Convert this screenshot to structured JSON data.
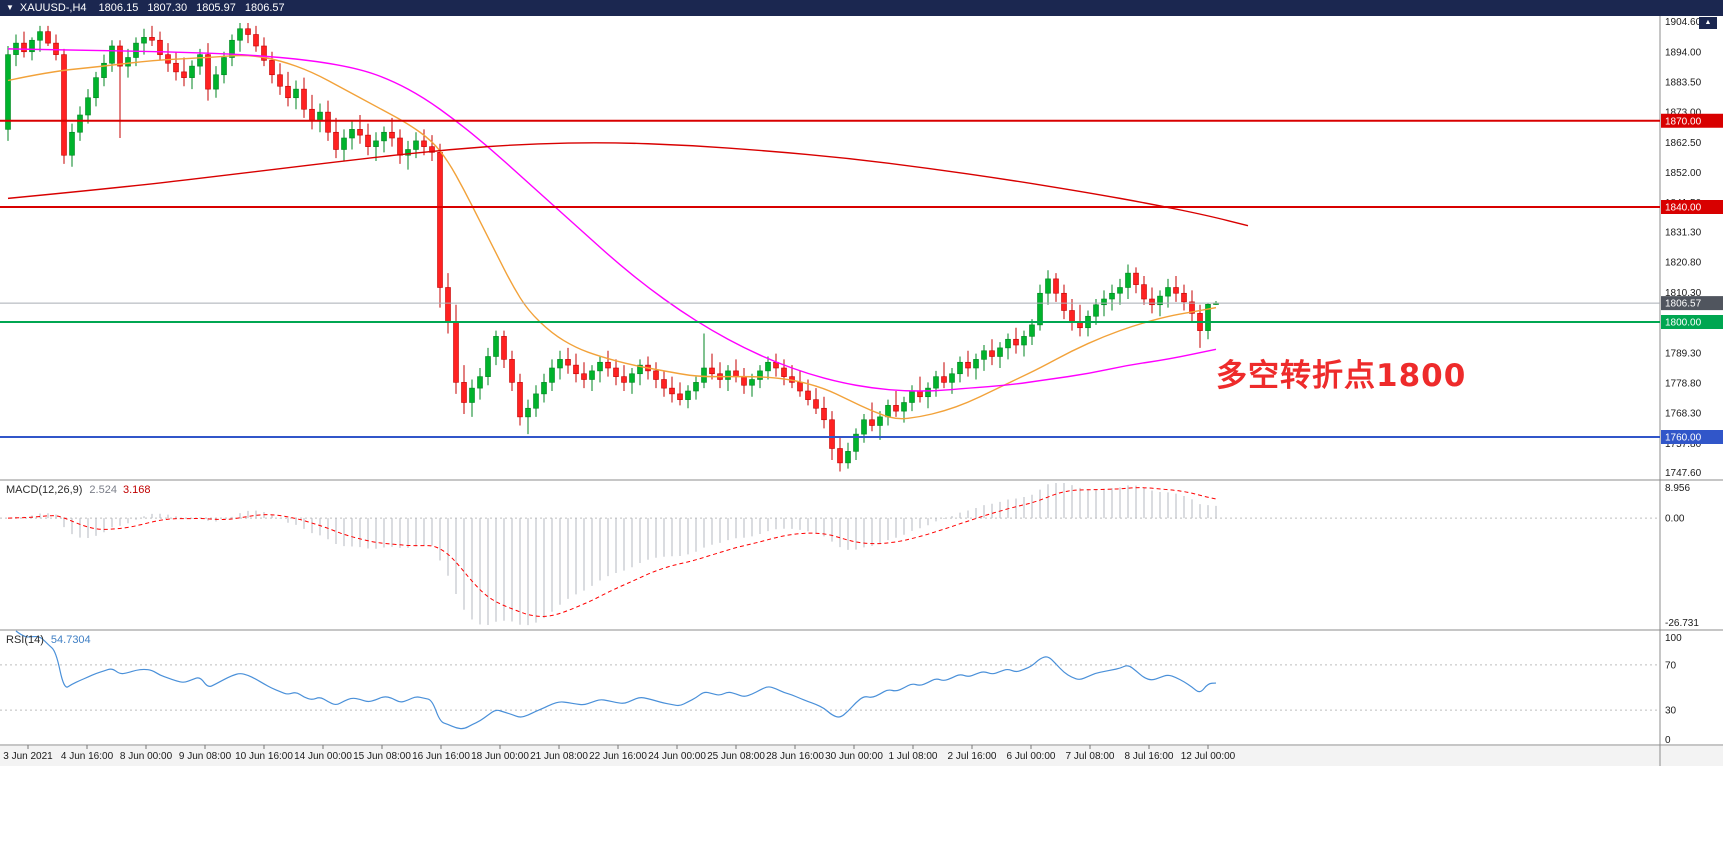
{
  "header": {
    "symbol_timeframe": "XAUUSD-,H4",
    "open": "1806.15",
    "high": "1807.30",
    "low": "1805.97",
    "close": "1806.57",
    "bar_color": "#1b2750"
  },
  "icons": {
    "symbol_dropdown": "▼",
    "scroll_up": "▲"
  },
  "annotation": {
    "text": "多空转折点1800",
    "color": "#ee2b2b"
  },
  "chart_data": {
    "type": "candlestick",
    "symbol": "XAUUSD-",
    "timeframe": "H4",
    "y_range": [
      1745.0,
      1907.0
    ],
    "price_ticks": [
      "1904.60",
      "1894.00",
      "1883.50",
      "1873.00",
      "1862.50",
      "1852.00",
      "1841.50",
      "1831.30",
      "1820.80",
      "1810.30",
      "1799.80",
      "1789.30",
      "1778.80",
      "1768.30",
      "1757.80",
      "1747.60"
    ],
    "x_labels": [
      "3 Jun 2021",
      "4 Jun 16:00",
      "8 Jun 00:00",
      "9 Jun 08:00",
      "10 Jun 16:00",
      "14 Jun 00:00",
      "15 Jun 08:00",
      "16 Jun 16:00",
      "18 Jun 00:00",
      "21 Jun 08:00",
      "22 Jun 16:00",
      "24 Jun 00:00",
      "25 Jun 08:00",
      "28 Jun 16:00",
      "30 Jun 00:00",
      "1 Jul 08:00",
      "2 Jul 16:00",
      "6 Jul 00:00",
      "7 Jul 08:00",
      "8 Jul 16:00",
      "12 Jul 00:00"
    ],
    "candle_colors": {
      "bull": "#00b32c",
      "bull_edge": "#008521",
      "bear": "#ff2121",
      "bear_edge": "#c40000"
    },
    "candles": [
      [
        1867,
        1896,
        1863,
        1893
      ],
      [
        1893,
        1900,
        1889,
        1897
      ],
      [
        1897,
        1901,
        1892,
        1894
      ],
      [
        1894,
        1899,
        1891,
        1898
      ],
      [
        1898,
        1903,
        1894,
        1901
      ],
      [
        1901,
        1903,
        1896,
        1897
      ],
      [
        1897,
        1900,
        1891,
        1893
      ],
      [
        1893,
        1895,
        1855,
        1858
      ],
      [
        1858,
        1869,
        1854,
        1866
      ],
      [
        1866,
        1875,
        1863,
        1872
      ],
      [
        1872,
        1881,
        1869,
        1878
      ],
      [
        1878,
        1887,
        1875,
        1885
      ],
      [
        1885,
        1893,
        1882,
        1890
      ],
      [
        1890,
        1898,
        1887,
        1896
      ],
      [
        1896,
        1898,
        1864,
        1889
      ],
      [
        1889,
        1895,
        1885,
        1892
      ],
      [
        1892,
        1899,
        1889,
        1897
      ],
      [
        1897,
        1902,
        1893,
        1899
      ],
      [
        1899,
        1903,
        1896,
        1898
      ],
      [
        1898,
        1901,
        1891,
        1893
      ],
      [
        1893,
        1897,
        1887,
        1890
      ],
      [
        1890,
        1894,
        1884,
        1887
      ],
      [
        1887,
        1892,
        1882,
        1885
      ],
      [
        1885,
        1891,
        1881,
        1889
      ],
      [
        1889,
        1895,
        1886,
        1893
      ],
      [
        1893,
        1897,
        1877,
        1881
      ],
      [
        1881,
        1889,
        1878,
        1886
      ],
      [
        1886,
        1894,
        1883,
        1892
      ],
      [
        1892,
        1900,
        1889,
        1898
      ],
      [
        1898,
        1904,
        1894,
        1902
      ],
      [
        1902,
        1904,
        1897,
        1900
      ],
      [
        1900,
        1903,
        1894,
        1896
      ],
      [
        1896,
        1899,
        1889,
        1891
      ],
      [
        1891,
        1894,
        1883,
        1886
      ],
      [
        1886,
        1890,
        1879,
        1882
      ],
      [
        1882,
        1887,
        1875,
        1878
      ],
      [
        1878,
        1884,
        1874,
        1881
      ],
      [
        1881,
        1885,
        1871,
        1874
      ],
      [
        1874,
        1879,
        1867,
        1870
      ],
      [
        1870,
        1876,
        1866,
        1873
      ],
      [
        1873,
        1877,
        1863,
        1866
      ],
      [
        1866,
        1871,
        1857,
        1860
      ],
      [
        1860,
        1867,
        1856,
        1864
      ],
      [
        1864,
        1870,
        1860,
        1867
      ],
      [
        1867,
        1872,
        1862,
        1865
      ],
      [
        1865,
        1869,
        1858,
        1861
      ],
      [
        1861,
        1866,
        1856,
        1863
      ],
      [
        1863,
        1868,
        1859,
        1866
      ],
      [
        1866,
        1871,
        1861,
        1864
      ],
      [
        1864,
        1867,
        1855,
        1858
      ],
      [
        1858,
        1863,
        1853,
        1860
      ],
      [
        1860,
        1866,
        1857,
        1863
      ],
      [
        1863,
        1867,
        1858,
        1861
      ],
      [
        1861,
        1865,
        1856,
        1859
      ],
      [
        1859,
        1862,
        1805,
        1812
      ],
      [
        1812,
        1817,
        1796,
        1800
      ],
      [
        1800,
        1806,
        1775,
        1779
      ],
      [
        1779,
        1785,
        1768,
        1772
      ],
      [
        1772,
        1780,
        1767,
        1777
      ],
      [
        1777,
        1784,
        1773,
        1781
      ],
      [
        1781,
        1791,
        1778,
        1788
      ],
      [
        1788,
        1797,
        1785,
        1795
      ],
      [
        1795,
        1797,
        1784,
        1787
      ],
      [
        1787,
        1790,
        1776,
        1779
      ],
      [
        1779,
        1782,
        1764,
        1767
      ],
      [
        1767,
        1773,
        1761,
        1770
      ],
      [
        1770,
        1778,
        1767,
        1775
      ],
      [
        1775,
        1782,
        1772,
        1779
      ],
      [
        1779,
        1787,
        1776,
        1784
      ],
      [
        1784,
        1790,
        1780,
        1787
      ],
      [
        1787,
        1791,
        1782,
        1785
      ],
      [
        1785,
        1789,
        1779,
        1782
      ],
      [
        1782,
        1786,
        1777,
        1780
      ],
      [
        1780,
        1785,
        1776,
        1783
      ],
      [
        1783,
        1788,
        1779,
        1786
      ],
      [
        1786,
        1790,
        1781,
        1784
      ],
      [
        1784,
        1787,
        1778,
        1781
      ],
      [
        1781,
        1785,
        1776,
        1779
      ],
      [
        1779,
        1784,
        1775,
        1782
      ],
      [
        1782,
        1787,
        1778,
        1785
      ],
      [
        1785,
        1788,
        1780,
        1783
      ],
      [
        1783,
        1786,
        1777,
        1780
      ],
      [
        1780,
        1783,
        1774,
        1777
      ],
      [
        1777,
        1781,
        1772,
        1775
      ],
      [
        1775,
        1779,
        1771,
        1773
      ],
      [
        1773,
        1778,
        1770,
        1776
      ],
      [
        1776,
        1781,
        1773,
        1779
      ],
      [
        1779,
        1796,
        1777,
        1784
      ],
      [
        1784,
        1789,
        1780,
        1782
      ],
      [
        1782,
        1786,
        1777,
        1780
      ],
      [
        1780,
        1785,
        1776,
        1783
      ],
      [
        1783,
        1787,
        1779,
        1781
      ],
      [
        1781,
        1784,
        1775,
        1778
      ],
      [
        1778,
        1782,
        1774,
        1780
      ],
      [
        1780,
        1785,
        1777,
        1783
      ],
      [
        1783,
        1788,
        1780,
        1786
      ],
      [
        1786,
        1789,
        1781,
        1784
      ],
      [
        1784,
        1787,
        1778,
        1781
      ],
      [
        1781,
        1785,
        1777,
        1779
      ],
      [
        1779,
        1783,
        1774,
        1776
      ],
      [
        1776,
        1780,
        1771,
        1773
      ],
      [
        1773,
        1777,
        1768,
        1770
      ],
      [
        1770,
        1774,
        1763,
        1766
      ],
      [
        1766,
        1769,
        1752,
        1756
      ],
      [
        1756,
        1760,
        1748,
        1751
      ],
      [
        1751,
        1758,
        1749,
        1755
      ],
      [
        1755,
        1763,
        1752,
        1761
      ],
      [
        1761,
        1768,
        1758,
        1766
      ],
      [
        1766,
        1772,
        1762,
        1764
      ],
      [
        1764,
        1769,
        1759,
        1767
      ],
      [
        1767,
        1773,
        1764,
        1771
      ],
      [
        1771,
        1776,
        1767,
        1769
      ],
      [
        1769,
        1774,
        1765,
        1772
      ],
      [
        1772,
        1778,
        1769,
        1776
      ],
      [
        1776,
        1781,
        1772,
        1774
      ],
      [
        1774,
        1779,
        1770,
        1777
      ],
      [
        1777,
        1783,
        1774,
        1781
      ],
      [
        1781,
        1786,
        1777,
        1779
      ],
      [
        1779,
        1784,
        1775,
        1782
      ],
      [
        1782,
        1788,
        1779,
        1786
      ],
      [
        1786,
        1790,
        1781,
        1784
      ],
      [
        1784,
        1789,
        1780,
        1787
      ],
      [
        1787,
        1792,
        1783,
        1790
      ],
      [
        1790,
        1794,
        1785,
        1788
      ],
      [
        1788,
        1793,
        1784,
        1791
      ],
      [
        1791,
        1796,
        1787,
        1794
      ],
      [
        1794,
        1798,
        1789,
        1792
      ],
      [
        1792,
        1797,
        1788,
        1795
      ],
      [
        1795,
        1801,
        1792,
        1799
      ],
      [
        1799,
        1813,
        1797,
        1810
      ],
      [
        1810,
        1818,
        1806,
        1815
      ],
      [
        1815,
        1817,
        1807,
        1810
      ],
      [
        1810,
        1813,
        1801,
        1804
      ],
      [
        1804,
        1808,
        1797,
        1800
      ],
      [
        1800,
        1806,
        1795,
        1798
      ],
      [
        1798,
        1804,
        1795,
        1802
      ],
      [
        1802,
        1808,
        1799,
        1806
      ],
      [
        1806,
        1811,
        1802,
        1808
      ],
      [
        1808,
        1813,
        1804,
        1810
      ],
      [
        1810,
        1815,
        1806,
        1812
      ],
      [
        1812,
        1820,
        1808,
        1817
      ],
      [
        1817,
        1819,
        1810,
        1813
      ],
      [
        1813,
        1816,
        1806,
        1808
      ],
      [
        1808,
        1812,
        1803,
        1806
      ],
      [
        1806,
        1811,
        1802,
        1809
      ],
      [
        1809,
        1815,
        1805,
        1812
      ],
      [
        1812,
        1816,
        1807,
        1810
      ],
      [
        1810,
        1813,
        1804,
        1807
      ],
      [
        1807,
        1811,
        1800,
        1803
      ],
      [
        1803,
        1806,
        1791,
        1797
      ],
      [
        1797,
        1806.5,
        1794,
        1806.15
      ],
      [
        1806.15,
        1807.3,
        1805.97,
        1806.57
      ]
    ],
    "levels": [
      {
        "label": "1870.00",
        "price": 1870.0,
        "color": "#d80000"
      },
      {
        "label": "1840.00",
        "price": 1840.0,
        "color": "#d80000"
      },
      {
        "label": "1800.00",
        "price": 1800.0,
        "color": "#00a651"
      },
      {
        "label": "1760.00",
        "price": 1760.0,
        "color": "#3156c9"
      }
    ],
    "current_price": {
      "label": "1806.57",
      "price": 1806.57,
      "line_color": "#a9adb5",
      "badge_color": "#50555e"
    },
    "moving_averages": [
      {
        "name": "ma-fast",
        "color": "#f2a23a",
        "points": [
          [
            0,
            1884
          ],
          [
            5,
            1887
          ],
          [
            12,
            1889
          ],
          [
            18,
            1891
          ],
          [
            25,
            1892
          ],
          [
            30,
            1893
          ],
          [
            34,
            1891
          ],
          [
            38,
            1887
          ],
          [
            42,
            1881
          ],
          [
            46,
            1875
          ],
          [
            50,
            1869
          ],
          [
            53,
            1863
          ],
          [
            55,
            1856
          ],
          [
            57,
            1846
          ],
          [
            59,
            1835
          ],
          [
            61,
            1824
          ],
          [
            63,
            1813
          ],
          [
            65,
            1804
          ],
          [
            68,
            1796
          ],
          [
            71,
            1791
          ],
          [
            74,
            1788
          ],
          [
            78,
            1785
          ],
          [
            82,
            1783
          ],
          [
            86,
            1781
          ],
          [
            90,
            1781
          ],
          [
            94,
            1781
          ],
          [
            98,
            1780
          ],
          [
            102,
            1777
          ],
          [
            105,
            1773
          ],
          [
            108,
            1769
          ],
          [
            111,
            1766
          ],
          [
            114,
            1767
          ],
          [
            117,
            1769
          ],
          [
            120,
            1772
          ],
          [
            123,
            1776
          ],
          [
            126,
            1780
          ],
          [
            129,
            1784
          ],
          [
            133,
            1790
          ],
          [
            137,
            1795
          ],
          [
            141,
            1799
          ],
          [
            145,
            1802
          ],
          [
            148,
            1803.5
          ],
          [
            151,
            1805
          ]
        ]
      },
      {
        "name": "ma-medium",
        "color": "#ff00ff",
        "points": [
          [
            0,
            1895
          ],
          [
            10,
            1894.5
          ],
          [
            20,
            1894
          ],
          [
            30,
            1893
          ],
          [
            38,
            1891
          ],
          [
            44,
            1888
          ],
          [
            48,
            1884
          ],
          [
            52,
            1878
          ],
          [
            56,
            1870
          ],
          [
            60,
            1861
          ],
          [
            64,
            1851
          ],
          [
            68,
            1841
          ],
          [
            72,
            1831
          ],
          [
            76,
            1821
          ],
          [
            80,
            1812
          ],
          [
            84,
            1804
          ],
          [
            88,
            1797
          ],
          [
            92,
            1791
          ],
          [
            96,
            1786
          ],
          [
            100,
            1782
          ],
          [
            104,
            1779
          ],
          [
            108,
            1777
          ],
          [
            112,
            1776
          ],
          [
            116,
            1776
          ],
          [
            120,
            1777
          ],
          [
            125,
            1778
          ],
          [
            130,
            1780
          ],
          [
            135,
            1782
          ],
          [
            140,
            1785
          ],
          [
            145,
            1787
          ],
          [
            151,
            1790.5
          ]
        ]
      },
      {
        "name": "ma-slow",
        "color": "#d80000",
        "points": [
          [
            0,
            1843
          ],
          [
            15,
            1847
          ],
          [
            30,
            1852
          ],
          [
            45,
            1857
          ],
          [
            55,
            1860
          ],
          [
            65,
            1862
          ],
          [
            75,
            1862.5
          ],
          [
            85,
            1861.5
          ],
          [
            95,
            1859.5
          ],
          [
            105,
            1857
          ],
          [
            115,
            1853.5
          ],
          [
            125,
            1849.5
          ],
          [
            135,
            1845
          ],
          [
            143,
            1841
          ],
          [
            150,
            1837
          ],
          [
            155,
            1833.5
          ]
        ]
      }
    ],
    "indicators": {
      "macd": {
        "label": "MACD(12,26,9)",
        "value_macd": "2.524",
        "value_signal": "3.168",
        "fast": 12,
        "slow": 26,
        "signal": 9,
        "axis_max": 8.956,
        "axis_min": -26.731,
        "axis_ticks": [
          "8.956",
          "0.00",
          "-26.731"
        ],
        "histogram_color": "#b6bac2",
        "signal_color": "#ff0000"
      },
      "rsi": {
        "label": "RSI(14)",
        "value": "54.7304",
        "period": 14,
        "axis_ticks": [
          "100",
          "70",
          "30",
          "0"
        ],
        "levels": [
          70,
          30
        ],
        "line_color": "#4a90d9"
      }
    }
  }
}
